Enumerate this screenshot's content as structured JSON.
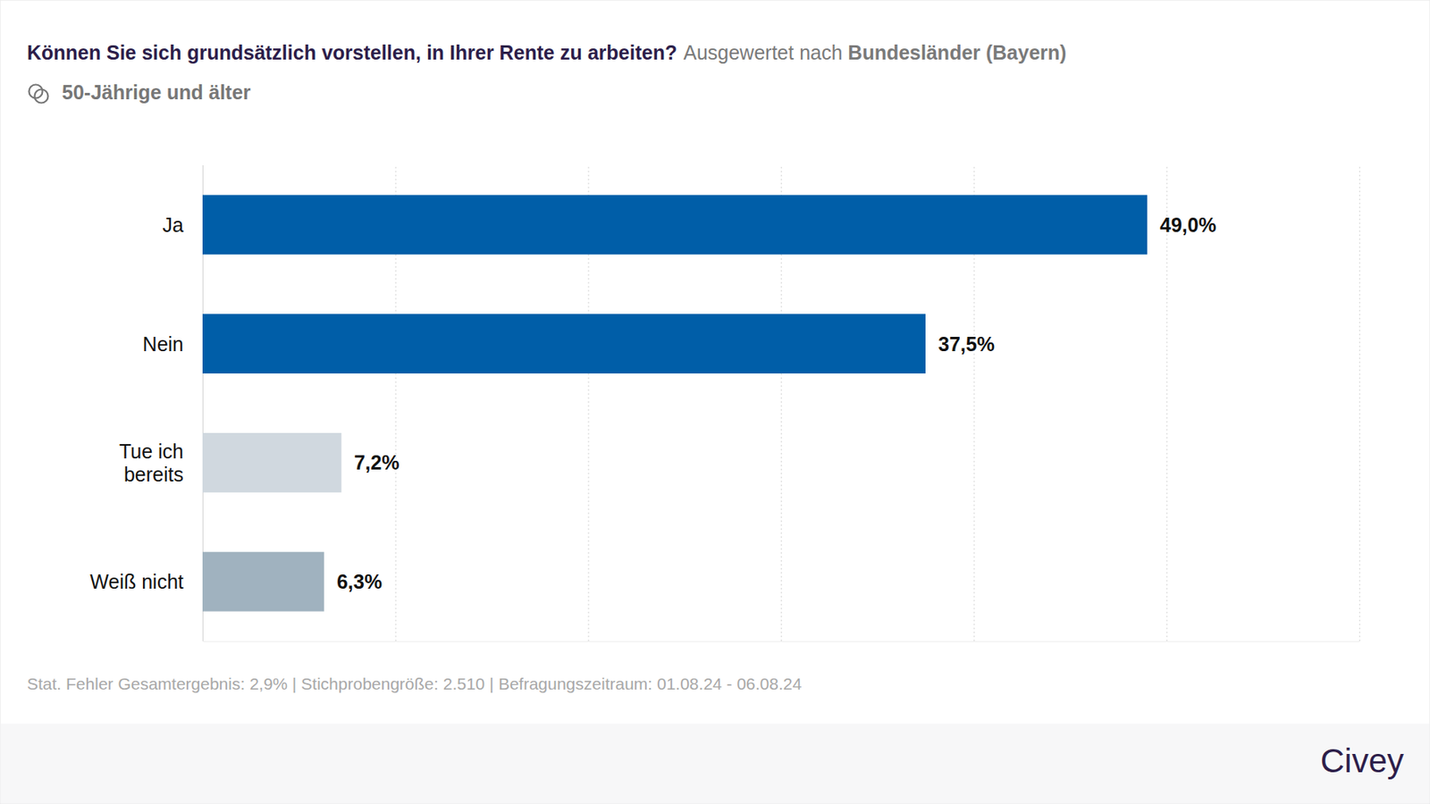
{
  "chart_data": {
    "type": "bar",
    "orientation": "horizontal",
    "title": "Können Sie sich grundsätzlich vorstellen, in Ihrer Rente zu arbeiten?",
    "subtitle": "50-Jährige und älter",
    "annotations": [
      "Ausgewertet nach",
      "Bundesländer (Bayern)",
      "Stat. Fehler Gesamtergebnis: 2,9% | Stichprobengröße: 2.510 | Befragungszeitraum: 01.08.24 - 06.08.24",
      "Civey"
    ],
    "categories": [
      "Ja",
      "Nein",
      "Tue ich bereits",
      "Weiß nicht"
    ],
    "values": [
      49.0,
      37.5,
      7.2,
      6.3
    ],
    "value_labels": [
      "49,0%",
      "37,5%",
      "7,2%",
      "6,3%"
    ],
    "colors": [
      "#005ea8",
      "#005ea8",
      "#d0d8df",
      "#a0b2bf"
    ],
    "xlim": [
      0,
      60
    ],
    "xticks": [
      0,
      10,
      20,
      30,
      40,
      50,
      60
    ],
    "grid": true,
    "tick_labels": false,
    "data_labels": true
  }
}
